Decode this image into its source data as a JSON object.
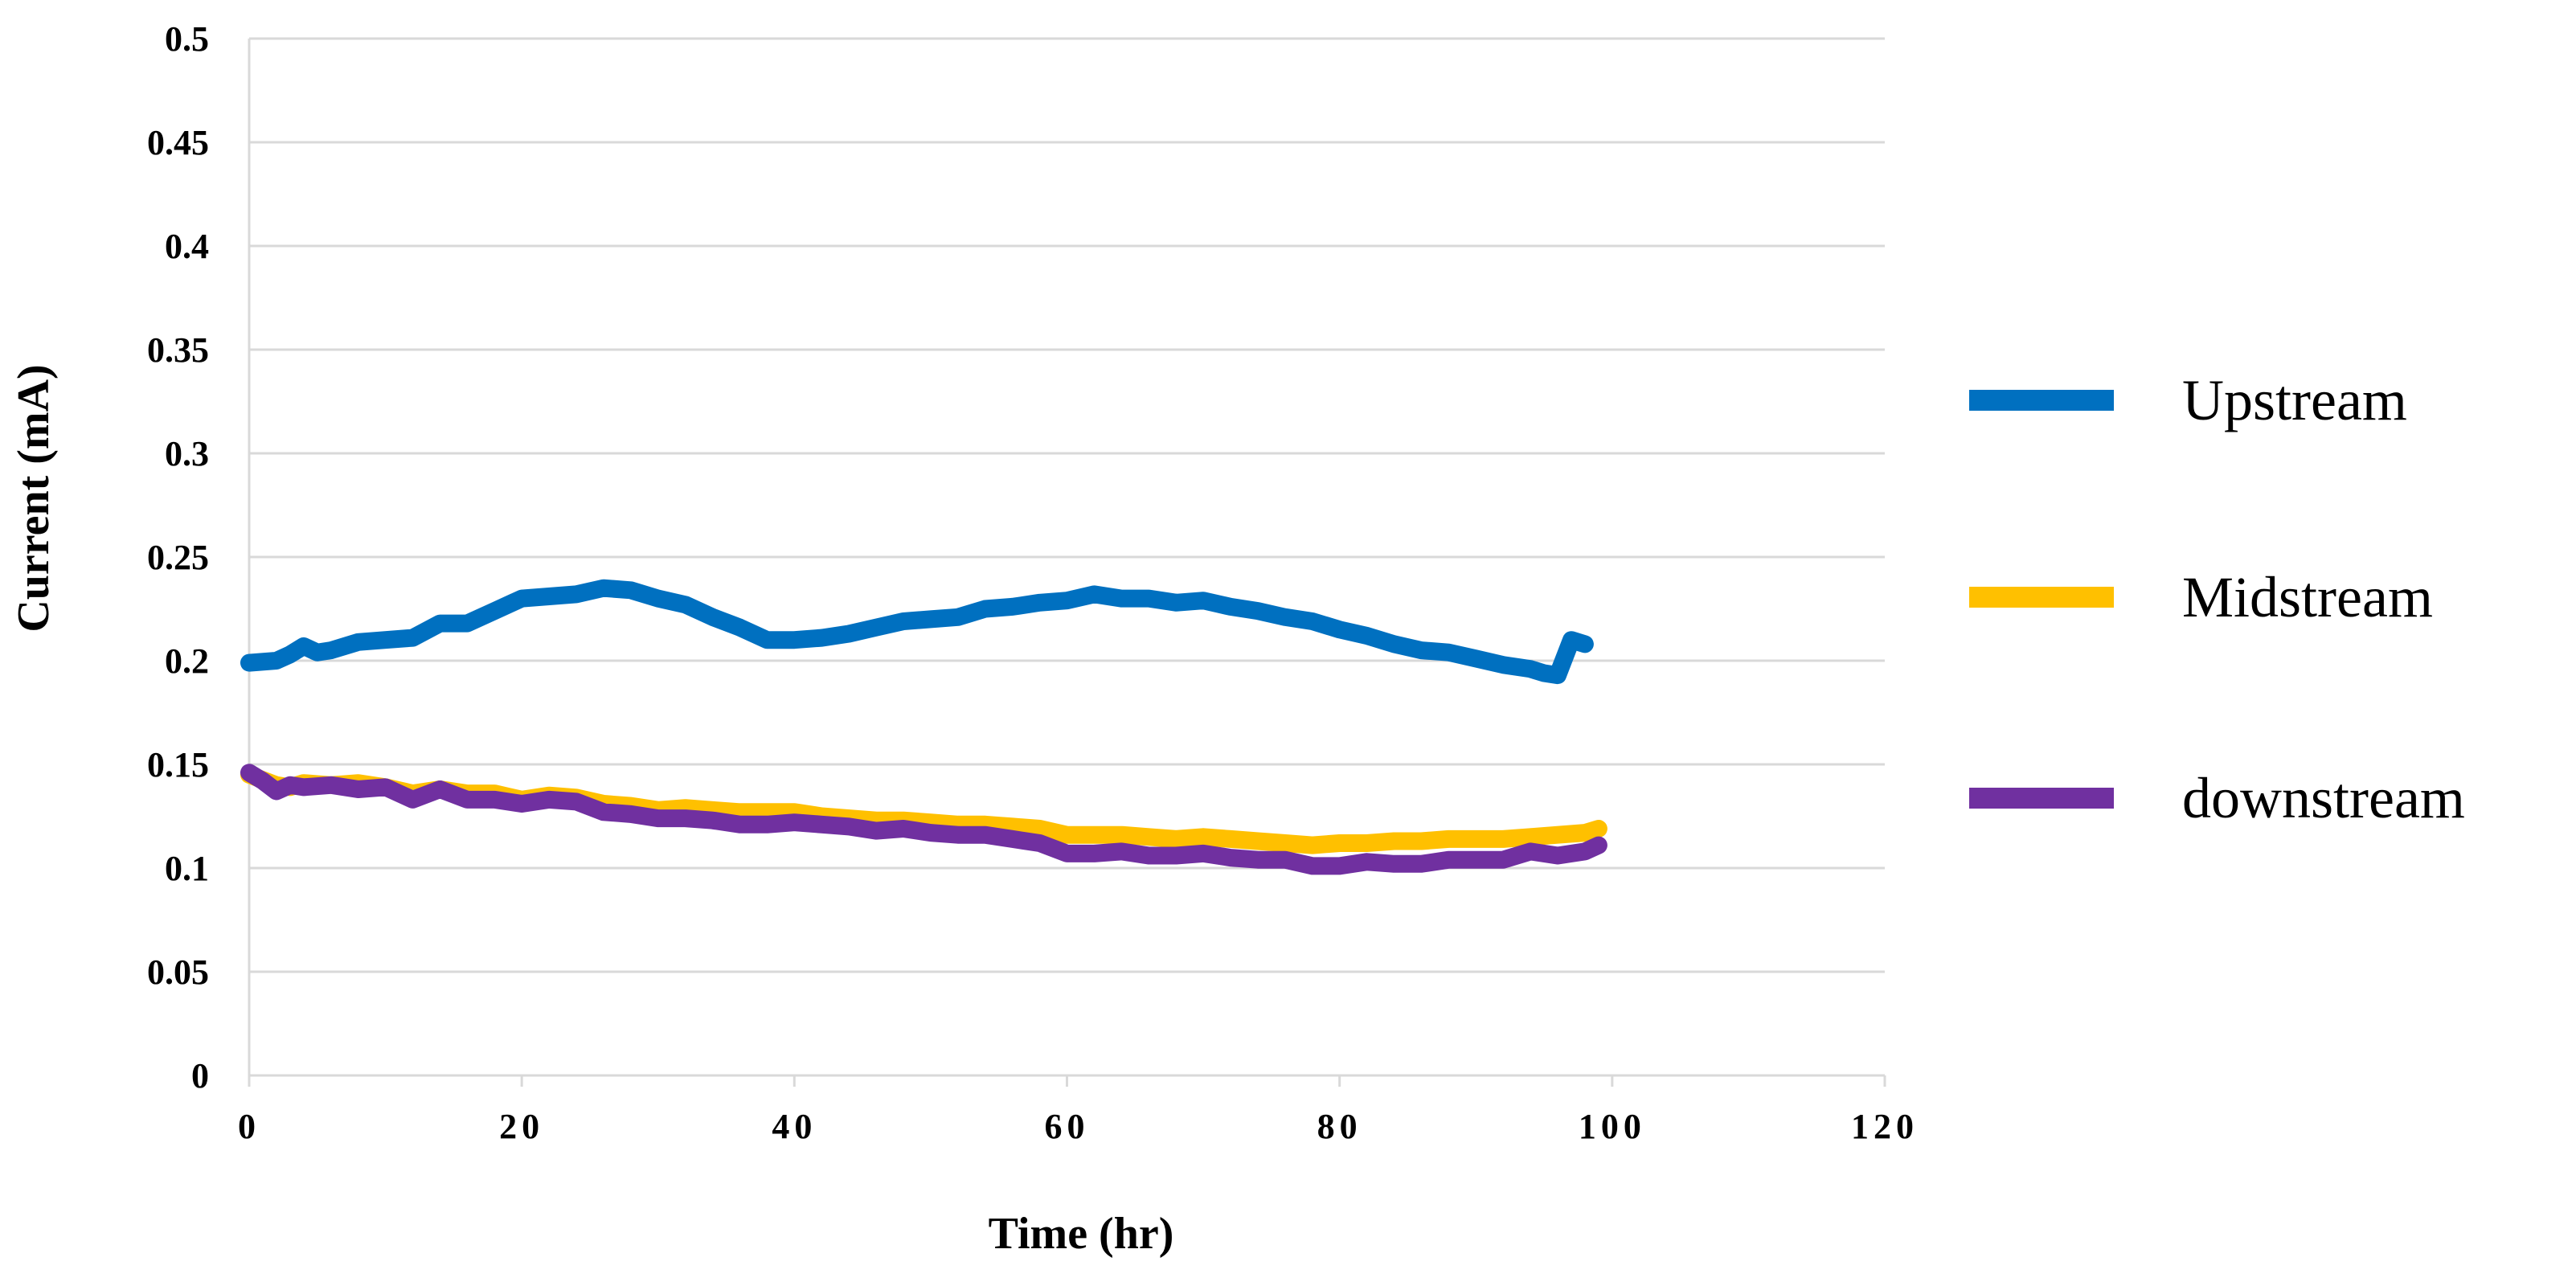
{
  "chart_data": {
    "type": "line",
    "title": "",
    "xlabel": "Time (hr)",
    "ylabel": "Current (mA)",
    "xlim": [
      0,
      120
    ],
    "ylim": [
      0,
      0.5
    ],
    "xticks": [
      0,
      20,
      40,
      60,
      80,
      100,
      120
    ],
    "yticks": [
      0,
      0.05,
      0.1,
      0.15,
      0.2,
      0.25,
      0.3,
      0.35,
      0.4,
      0.45,
      0.5
    ],
    "ytick_labels": [
      "0",
      "0.05",
      "0.1",
      "0.15",
      "0.2",
      "0.25",
      "0.3",
      "0.35",
      "0.4",
      "0.45",
      "0.5"
    ],
    "xtick_labels": [
      "0",
      "20",
      "40",
      "60",
      "80",
      "100",
      "120"
    ],
    "grid": true,
    "legend_position": "right",
    "series": [
      {
        "name": "Upstream",
        "color": "#0070C0",
        "x": [
          0,
          2,
          3,
          4,
          5,
          6,
          8,
          10,
          12,
          14,
          16,
          18,
          20,
          22,
          24,
          26,
          28,
          30,
          32,
          34,
          36,
          38,
          40,
          42,
          44,
          46,
          48,
          50,
          52,
          54,
          56,
          58,
          60,
          62,
          64,
          66,
          68,
          70,
          72,
          74,
          76,
          78,
          80,
          82,
          84,
          86,
          88,
          90,
          92,
          94,
          95,
          96,
          97,
          98
        ],
        "y": [
          0.199,
          0.2,
          0.203,
          0.207,
          0.204,
          0.205,
          0.209,
          0.21,
          0.211,
          0.218,
          0.218,
          0.224,
          0.23,
          0.231,
          0.232,
          0.235,
          0.234,
          0.23,
          0.227,
          0.221,
          0.216,
          0.21,
          0.21,
          0.211,
          0.213,
          0.216,
          0.219,
          0.22,
          0.221,
          0.225,
          0.226,
          0.228,
          0.229,
          0.232,
          0.23,
          0.23,
          0.228,
          0.229,
          0.226,
          0.224,
          0.221,
          0.219,
          0.215,
          0.212,
          0.208,
          0.205,
          0.204,
          0.201,
          0.198,
          0.196,
          0.194,
          0.193,
          0.21,
          0.208
        ]
      },
      {
        "name": "Midstream",
        "color": "#FFC000",
        "x": [
          0,
          2,
          3,
          4,
          6,
          8,
          10,
          12,
          14,
          16,
          18,
          20,
          22,
          24,
          26,
          28,
          30,
          32,
          34,
          36,
          38,
          40,
          42,
          44,
          46,
          48,
          50,
          52,
          54,
          56,
          58,
          60,
          62,
          64,
          66,
          68,
          70,
          72,
          74,
          76,
          78,
          80,
          82,
          84,
          86,
          88,
          90,
          92,
          94,
          96,
          98,
          99
        ],
        "y": [
          0.145,
          0.14,
          0.139,
          0.141,
          0.14,
          0.141,
          0.139,
          0.136,
          0.138,
          0.136,
          0.136,
          0.133,
          0.135,
          0.134,
          0.131,
          0.13,
          0.128,
          0.129,
          0.128,
          0.127,
          0.127,
          0.127,
          0.125,
          0.124,
          0.123,
          0.123,
          0.122,
          0.121,
          0.121,
          0.12,
          0.119,
          0.116,
          0.116,
          0.116,
          0.115,
          0.114,
          0.115,
          0.114,
          0.113,
          0.112,
          0.111,
          0.112,
          0.112,
          0.113,
          0.113,
          0.114,
          0.114,
          0.114,
          0.115,
          0.116,
          0.117,
          0.119
        ]
      },
      {
        "name": "downstream",
        "color": "#7030A0",
        "x": [
          0,
          1,
          2,
          3,
          4,
          6,
          8,
          10,
          12,
          14,
          16,
          18,
          20,
          22,
          24,
          26,
          28,
          30,
          32,
          34,
          36,
          38,
          40,
          42,
          44,
          46,
          48,
          50,
          52,
          54,
          56,
          58,
          60,
          62,
          64,
          66,
          68,
          70,
          72,
          74,
          76,
          78,
          80,
          82,
          84,
          86,
          88,
          90,
          92,
          94,
          96,
          98,
          99
        ],
        "y": [
          0.146,
          0.142,
          0.137,
          0.14,
          0.139,
          0.14,
          0.138,
          0.139,
          0.133,
          0.138,
          0.133,
          0.133,
          0.131,
          0.133,
          0.132,
          0.127,
          0.126,
          0.124,
          0.124,
          0.123,
          0.121,
          0.121,
          0.122,
          0.121,
          0.12,
          0.118,
          0.119,
          0.117,
          0.116,
          0.116,
          0.114,
          0.112,
          0.107,
          0.107,
          0.108,
          0.106,
          0.106,
          0.107,
          0.105,
          0.104,
          0.104,
          0.101,
          0.101,
          0.103,
          0.102,
          0.102,
          0.104,
          0.104,
          0.104,
          0.108,
          0.106,
          0.108,
          0.111
        ]
      }
    ]
  }
}
